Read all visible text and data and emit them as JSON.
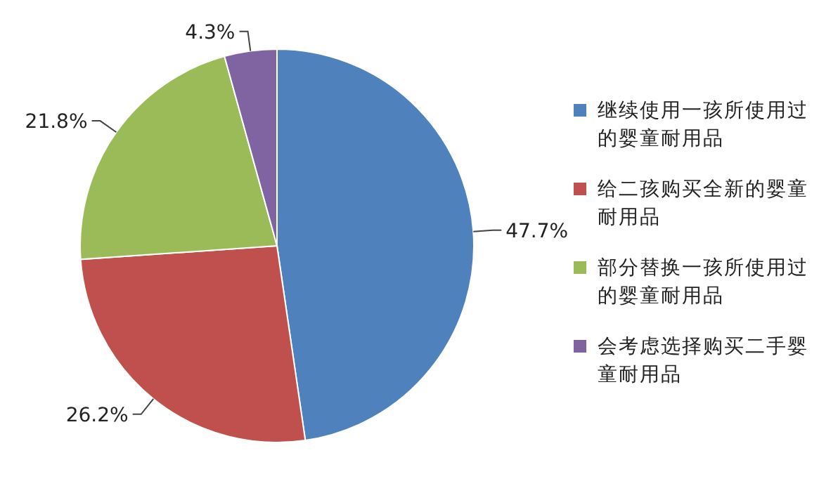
{
  "chart_data": {
    "type": "pie",
    "categories": [
      "继续使用一孩所使用过的婴童耐用品",
      "给二孩购买全新的婴童耐用品",
      "部分替换一孩所使用过的婴童耐用品",
      "会考虑选择购买二手婴童耐用品"
    ],
    "values": [
      47.7,
      26.2,
      21.8,
      4.3
    ],
    "colors": [
      "#4f81bd",
      "#c0504d",
      "#9bbb59",
      "#8064a2"
    ],
    "value_labels": [
      "47.7%",
      "26.2%",
      "21.8%",
      "4.3%"
    ],
    "legend": "right"
  }
}
